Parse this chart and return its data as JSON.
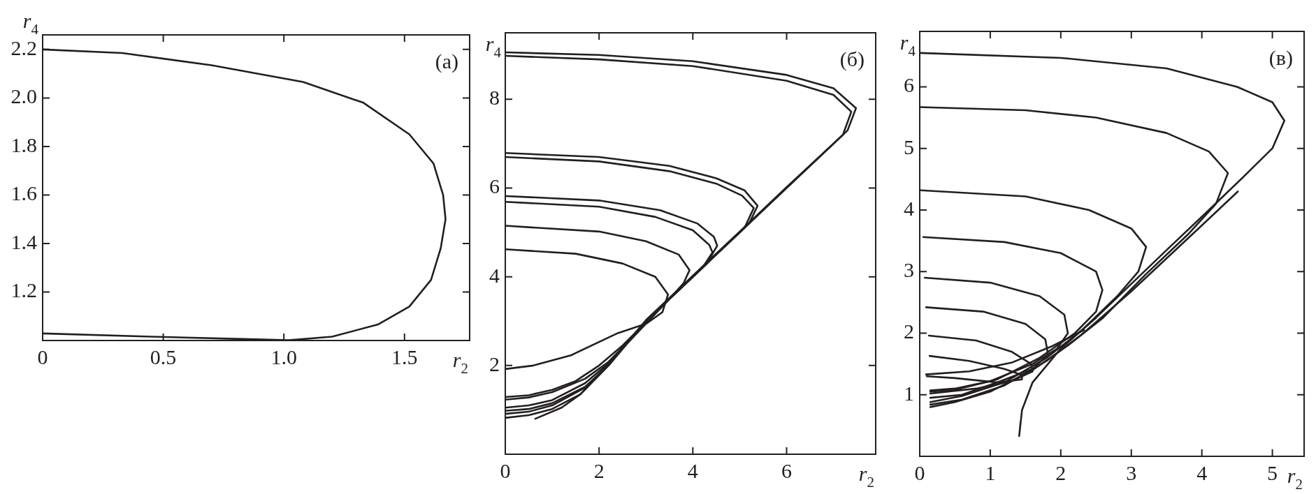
{
  "chart_data": [
    {
      "type": "line",
      "xlabel": "r$_{2}$",
      "ylabel": "r$_{4}$",
      "annotations": [
        "(a)"
      ],
      "xlim": [
        0,
        1.77
      ],
      "ylim": [
        1.0,
        2.26
      ],
      "xticks": [
        0,
        0.5,
        {
          "value": 1,
          "label": "1.0"
        },
        1.5
      ],
      "yticks": [
        1.2,
        1.4,
        1.6,
        1.8,
        {
          "value": 2,
          "label": "2.0"
        },
        2.2
      ],
      "grid": false,
      "legend": false,
      "series": [
        {
          "color": "#231f20",
          "x": [
            0,
            0.33,
            0.7,
            1.08,
            1.33,
            1.52,
            1.62,
            1.66,
            1.67,
            1.65,
            1.61,
            1.52,
            1.39,
            1.2,
            1.02,
            0.83,
            0.45,
            0
          ],
          "values": [
            2.2,
            2.185,
            2.135,
            2.066,
            1.98,
            1.85,
            1.73,
            1.6,
            1.5,
            1.38,
            1.25,
            1.14,
            1.066,
            1.016,
            1.001,
            1.006,
            1.016,
            1.029
          ]
        }
      ]
    },
    {
      "type": "line",
      "xlabel": "r$_{2}$",
      "ylabel": "r$_{4}$",
      "annotations": [
        "(б)"
      ],
      "xlim": [
        0,
        7.9
      ],
      "ylim": [
        0,
        9.5
      ],
      "xticks": [
        0,
        2,
        4,
        6
      ],
      "yticks": [
        2,
        4,
        6,
        8
      ],
      "grid": false,
      "legend": false,
      "series": [
        {
          "color": "#231f20",
          "x": [
            0,
            2,
            4,
            6,
            7,
            7.48,
            7.3,
            7,
            6,
            5,
            4,
            3,
            2.2,
            1.6,
            1,
            0.5,
            0
          ],
          "values": [
            9.06,
            9,
            8.86,
            8.55,
            8.25,
            7.8,
            7.3,
            7,
            6,
            5,
            4,
            3,
            2,
            1.35,
            1.02,
            0.88,
            0.82
          ]
        },
        {
          "color": "#231f20",
          "x": [
            0,
            2,
            4,
            6,
            7,
            7.38,
            7.2,
            6,
            5,
            4,
            3,
            2.2,
            1.6,
            1.2,
            0.64
          ],
          "values": [
            8.98,
            8.9,
            8.75,
            8.42,
            8.1,
            7.72,
            7.2,
            6.02,
            5.02,
            4.02,
            3.02,
            2,
            1.35,
            1.05,
            0.8
          ]
        },
        {
          "color": "#231f20",
          "x": [
            0,
            2,
            3.5,
            4.5,
            5.1,
            5.38,
            5.2,
            4.5,
            3.5,
            3,
            2.2,
            1.7,
            1,
            0.5,
            0
          ],
          "values": [
            6.79,
            6.7,
            6.5,
            6.22,
            5.95,
            5.6,
            5.2,
            4.52,
            3.52,
            3.02,
            2.02,
            1.5,
            1.1,
            0.96,
            0.91
          ]
        },
        {
          "color": "#231f20",
          "x": [
            0,
            2,
            3.5,
            4.5,
            5.05,
            5.3,
            5.1,
            4,
            3,
            2.2,
            1.7,
            1,
            0.5,
            0
          ],
          "values": [
            6.7,
            6.6,
            6.38,
            6.1,
            5.83,
            5.55,
            5.1,
            4,
            3,
            2,
            1.52,
            1.15,
            1.02,
            0.98
          ]
        },
        {
          "color": "#231f20",
          "x": [
            0,
            2,
            3.3,
            4.1,
            4.45,
            4.52,
            4.3,
            3.5,
            2.2,
            1.7,
            1,
            0.5,
            0
          ],
          "values": [
            5.82,
            5.72,
            5.5,
            5.2,
            4.9,
            4.7,
            4.3,
            3.5,
            2.05,
            1.6,
            1.22,
            1.1,
            1.05
          ]
        },
        {
          "color": "#231f20",
          "x": [
            0,
            2,
            3.2,
            4,
            4.35,
            4.42,
            4.2,
            3.5,
            2.2,
            1.7,
            1,
            0.5,
            0
          ],
          "values": [
            5.69,
            5.58,
            5.35,
            5.05,
            4.72,
            4.55,
            4.2,
            3.5,
            2.08,
            1.7,
            1.4,
            1.28,
            1.23
          ]
        },
        {
          "color": "#231f20",
          "x": [
            0,
            2,
            3,
            3.7,
            3.93,
            3.8,
            3.5,
            2.5,
            2,
            1.5,
            1,
            0.5,
            0
          ],
          "values": [
            5.15,
            5.02,
            4.8,
            4.5,
            4.15,
            3.85,
            3.5,
            2.45,
            2,
            1.65,
            1.45,
            1.33,
            1.29
          ]
        },
        {
          "color": "#231f20",
          "x": [
            0,
            1.5,
            2.5,
            3.2,
            3.47,
            3.35,
            3,
            2.4,
            1.4,
            0.6,
            0
          ],
          "values": [
            4.62,
            4.52,
            4.3,
            4,
            3.6,
            3.2,
            2.94,
            2.73,
            2.23,
            2,
            1.92
          ]
        }
      ]
    },
    {
      "type": "line",
      "xlabel": "r$_{2}$",
      "ylabel": "r$_{4}$",
      "annotations": [
        "(в)"
      ],
      "xlim": [
        0,
        5.45
      ],
      "ylim": [
        0,
        6.9
      ],
      "xticks": [
        0,
        1,
        2,
        3,
        4,
        5
      ],
      "yticks": [
        1,
        2,
        3,
        4,
        5,
        6
      ],
      "grid": false,
      "legend": false,
      "series": [
        {
          "color": "#231f20",
          "x": [
            0,
            2,
            3.5,
            4.5,
            5,
            5.17,
            5,
            4.6,
            4.1,
            3.5,
            3,
            2.5,
            2,
            1.6,
            1.45,
            1.41,
            1.43
          ],
          "values": [
            6.55,
            6.47,
            6.3,
            6,
            5.75,
            5.45,
            5,
            4.55,
            4,
            3.35,
            2.8,
            2.25,
            1.75,
            1.2,
            0.75,
            0.33,
            0.56
          ]
        },
        {
          "color": "#231f20",
          "x": [
            0,
            1.5,
            2.5,
            3.5,
            4.1,
            4.37,
            4.2,
            3.8,
            3.2,
            2.6,
            2.1,
            1.6,
            1,
            0.5,
            0.15
          ],
          "values": [
            5.67,
            5.62,
            5.5,
            5.25,
            4.95,
            4.6,
            4.1,
            3.6,
            2.95,
            2.25,
            1.8,
            1.4,
            1.05,
            0.88,
            0.8
          ]
        },
        {
          "color": "#231f20",
          "x": [
            0.02,
            1.5,
            2.4,
            3,
            3.21,
            3.1,
            2.8,
            2.3,
            1.8,
            1.2,
            0.6,
            0.15
          ],
          "values": [
            4.32,
            4.22,
            4,
            3.7,
            3.4,
            3,
            2.6,
            2.05,
            1.6,
            1.2,
            0.98,
            0.88
          ]
        },
        {
          "color": "#231f20",
          "x": [
            0.05,
            1.2,
            2,
            2.5,
            2.59,
            2.5,
            2.2,
            1.7,
            1.1,
            0.5,
            0.15
          ],
          "values": [
            3.56,
            3.48,
            3.3,
            3,
            2.7,
            2.35,
            2,
            1.6,
            1.25,
            1.08,
            1.05
          ]
        },
        {
          "color": "#231f20",
          "x": [
            0.07,
            1,
            1.7,
            2.05,
            2.1,
            1.95,
            1.6,
            1,
            0.5,
            0.15
          ],
          "values": [
            2.9,
            2.82,
            2.6,
            2.3,
            2,
            1.75,
            1.5,
            1.22,
            1.1,
            1.07
          ]
        },
        {
          "color": "#231f20",
          "x": [
            0.09,
            0.9,
            1.5,
            1.78,
            1.82,
            1.6,
            1.1,
            0.6,
            0.15
          ],
          "values": [
            2.42,
            2.35,
            2.15,
            1.9,
            1.65,
            1.42,
            1.2,
            1,
            0.95
          ]
        },
        {
          "color": "#231f20",
          "x": [
            0.13,
            0.8,
            1.3,
            1.58,
            1.6,
            1.3,
            0.8,
            0.15
          ],
          "values": [
            1.96,
            1.88,
            1.7,
            1.5,
            1.38,
            1.22,
            1.1,
            1.02
          ]
        },
        {
          "color": "#231f20",
          "x": [
            0.14,
            0.7,
            1.2,
            1.45,
            1.45,
            1.1,
            0.5,
            0.1
          ],
          "values": [
            1.63,
            1.55,
            1.42,
            1.32,
            1.25,
            1.2,
            1.27,
            1.3
          ]
        },
        {
          "color": "#231f20",
          "x": [
            0.09,
            0.7,
            1.3,
            1.88,
            2.33
          ],
          "values": [
            1.33,
            1.38,
            1.52,
            1.79,
            2.05
          ]
        },
        {
          "color": "#231f20",
          "x": [
            4.51,
            4,
            3,
            2.3,
            1.8,
            1.2,
            0.6,
            0.15
          ],
          "values": [
            4.3,
            3.75,
            2.68,
            1.98,
            1.55,
            1.15,
            0.92,
            0.84
          ]
        }
      ]
    }
  ]
}
